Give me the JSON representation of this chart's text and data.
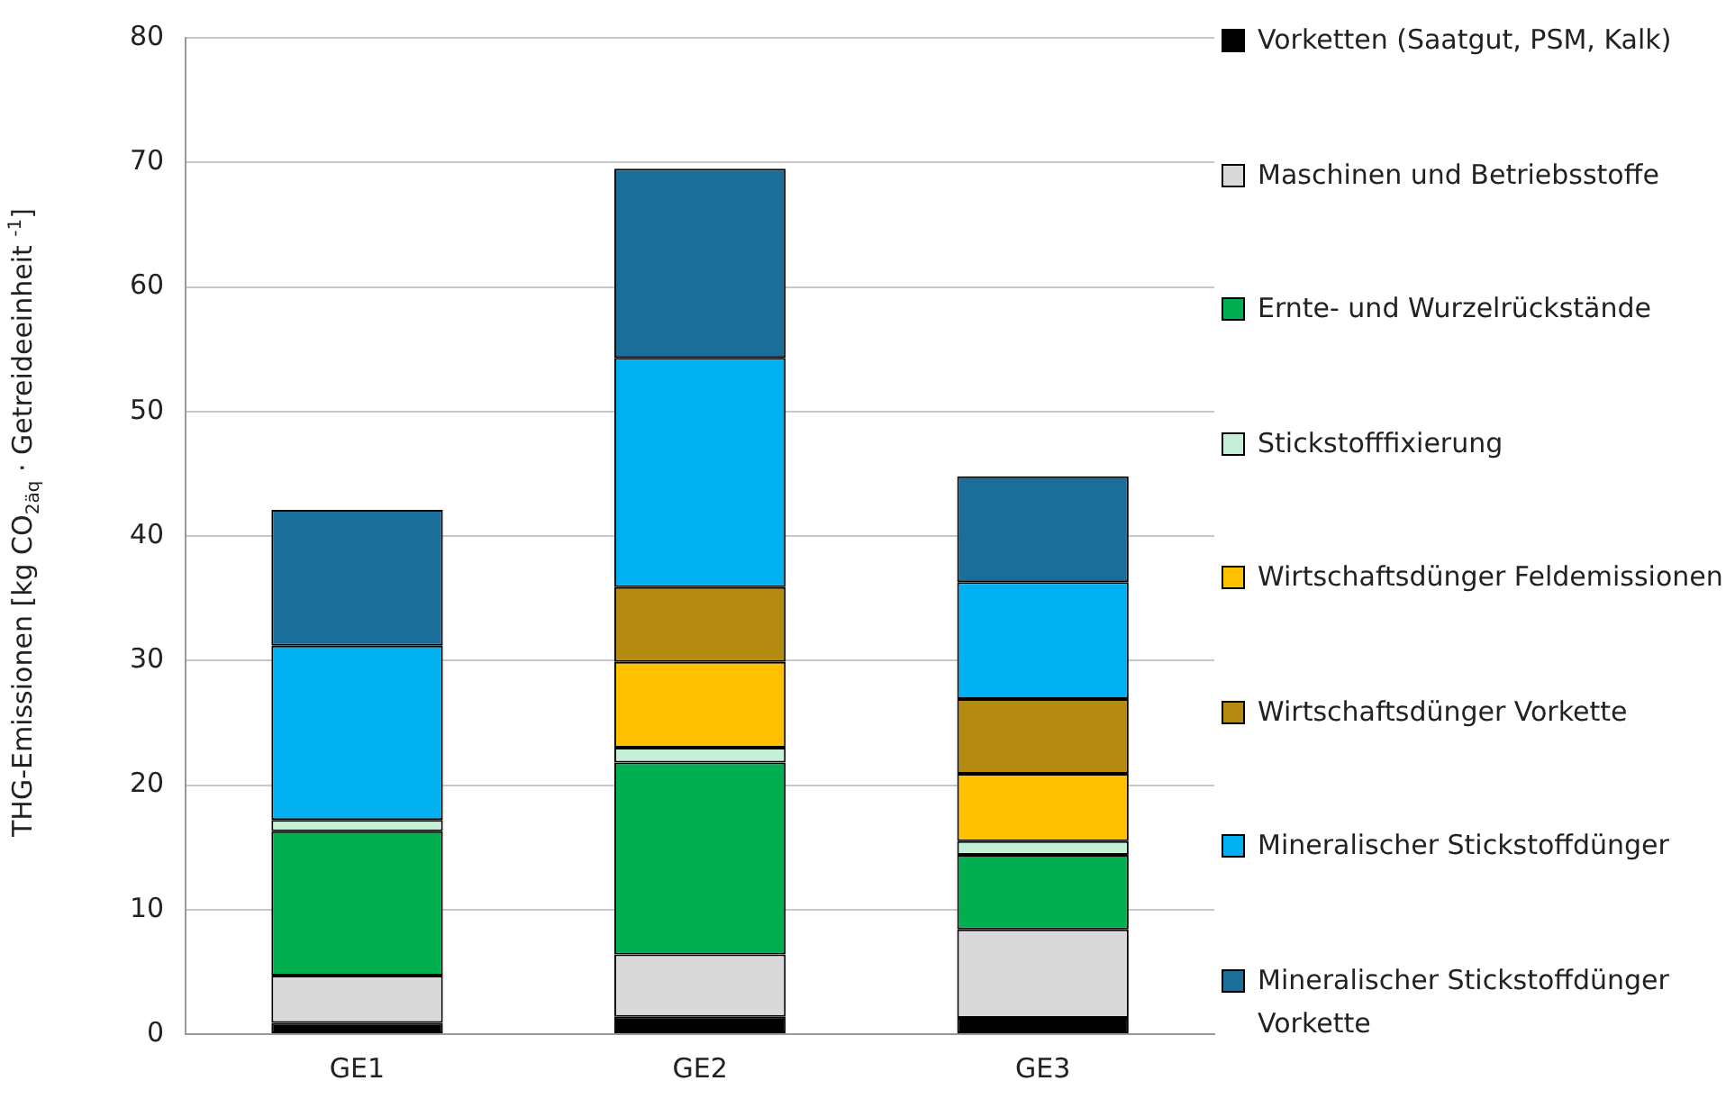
{
  "chart_data": {
    "type": "bar",
    "stacked": true,
    "ylabel": "THG-Emissionen [kg CO$_{2äq}$ · Getreideeinheit $^{-1}$]",
    "categories": [
      "GE1",
      "GE2",
      "GE3"
    ],
    "series": [
      {
        "name": "Vorketten (Saatgut, PSM, Kalk)",
        "color": "#000000",
        "values": [
          0.9,
          1.4,
          1.3
        ]
      },
      {
        "name": "Maschinen und Betriebsstoffe",
        "color": "#d9d9d9",
        "values": [
          3.8,
          5.0,
          7.1
        ]
      },
      {
        "name": "Ernte- und Wurzelrückstände",
        "color": "#00b050",
        "values": [
          11.6,
          15.4,
          6.0
        ]
      },
      {
        "name": "Stickstofffixierung",
        "color": "#c6efd8",
        "values": [
          0.9,
          1.2,
          1.1
        ]
      },
      {
        "name": "Wirtschaftsdünger Feldemissionen",
        "color": "#ffc000",
        "values": [
          0,
          6.9,
          5.4
        ]
      },
      {
        "name": "Wirtschaftsdünger Vorkette",
        "color": "#b58a10",
        "values": [
          0,
          6.0,
          6.0
        ]
      },
      {
        "name": "Mineralischer Stickstoffdünger",
        "color": "#00b0f0",
        "values": [
          14.0,
          18.4,
          9.4
        ]
      },
      {
        "name": "Mineralischer Stickstoffdünger Vorkette",
        "color": "#1a6f9a",
        "values": [
          10.9,
          15.2,
          8.5
        ]
      }
    ],
    "ylim": [
      0,
      80
    ],
    "yticks": [
      0,
      10,
      20,
      30,
      40,
      50,
      60,
      70,
      80
    ],
    "grid": "y",
    "legend": "right"
  }
}
